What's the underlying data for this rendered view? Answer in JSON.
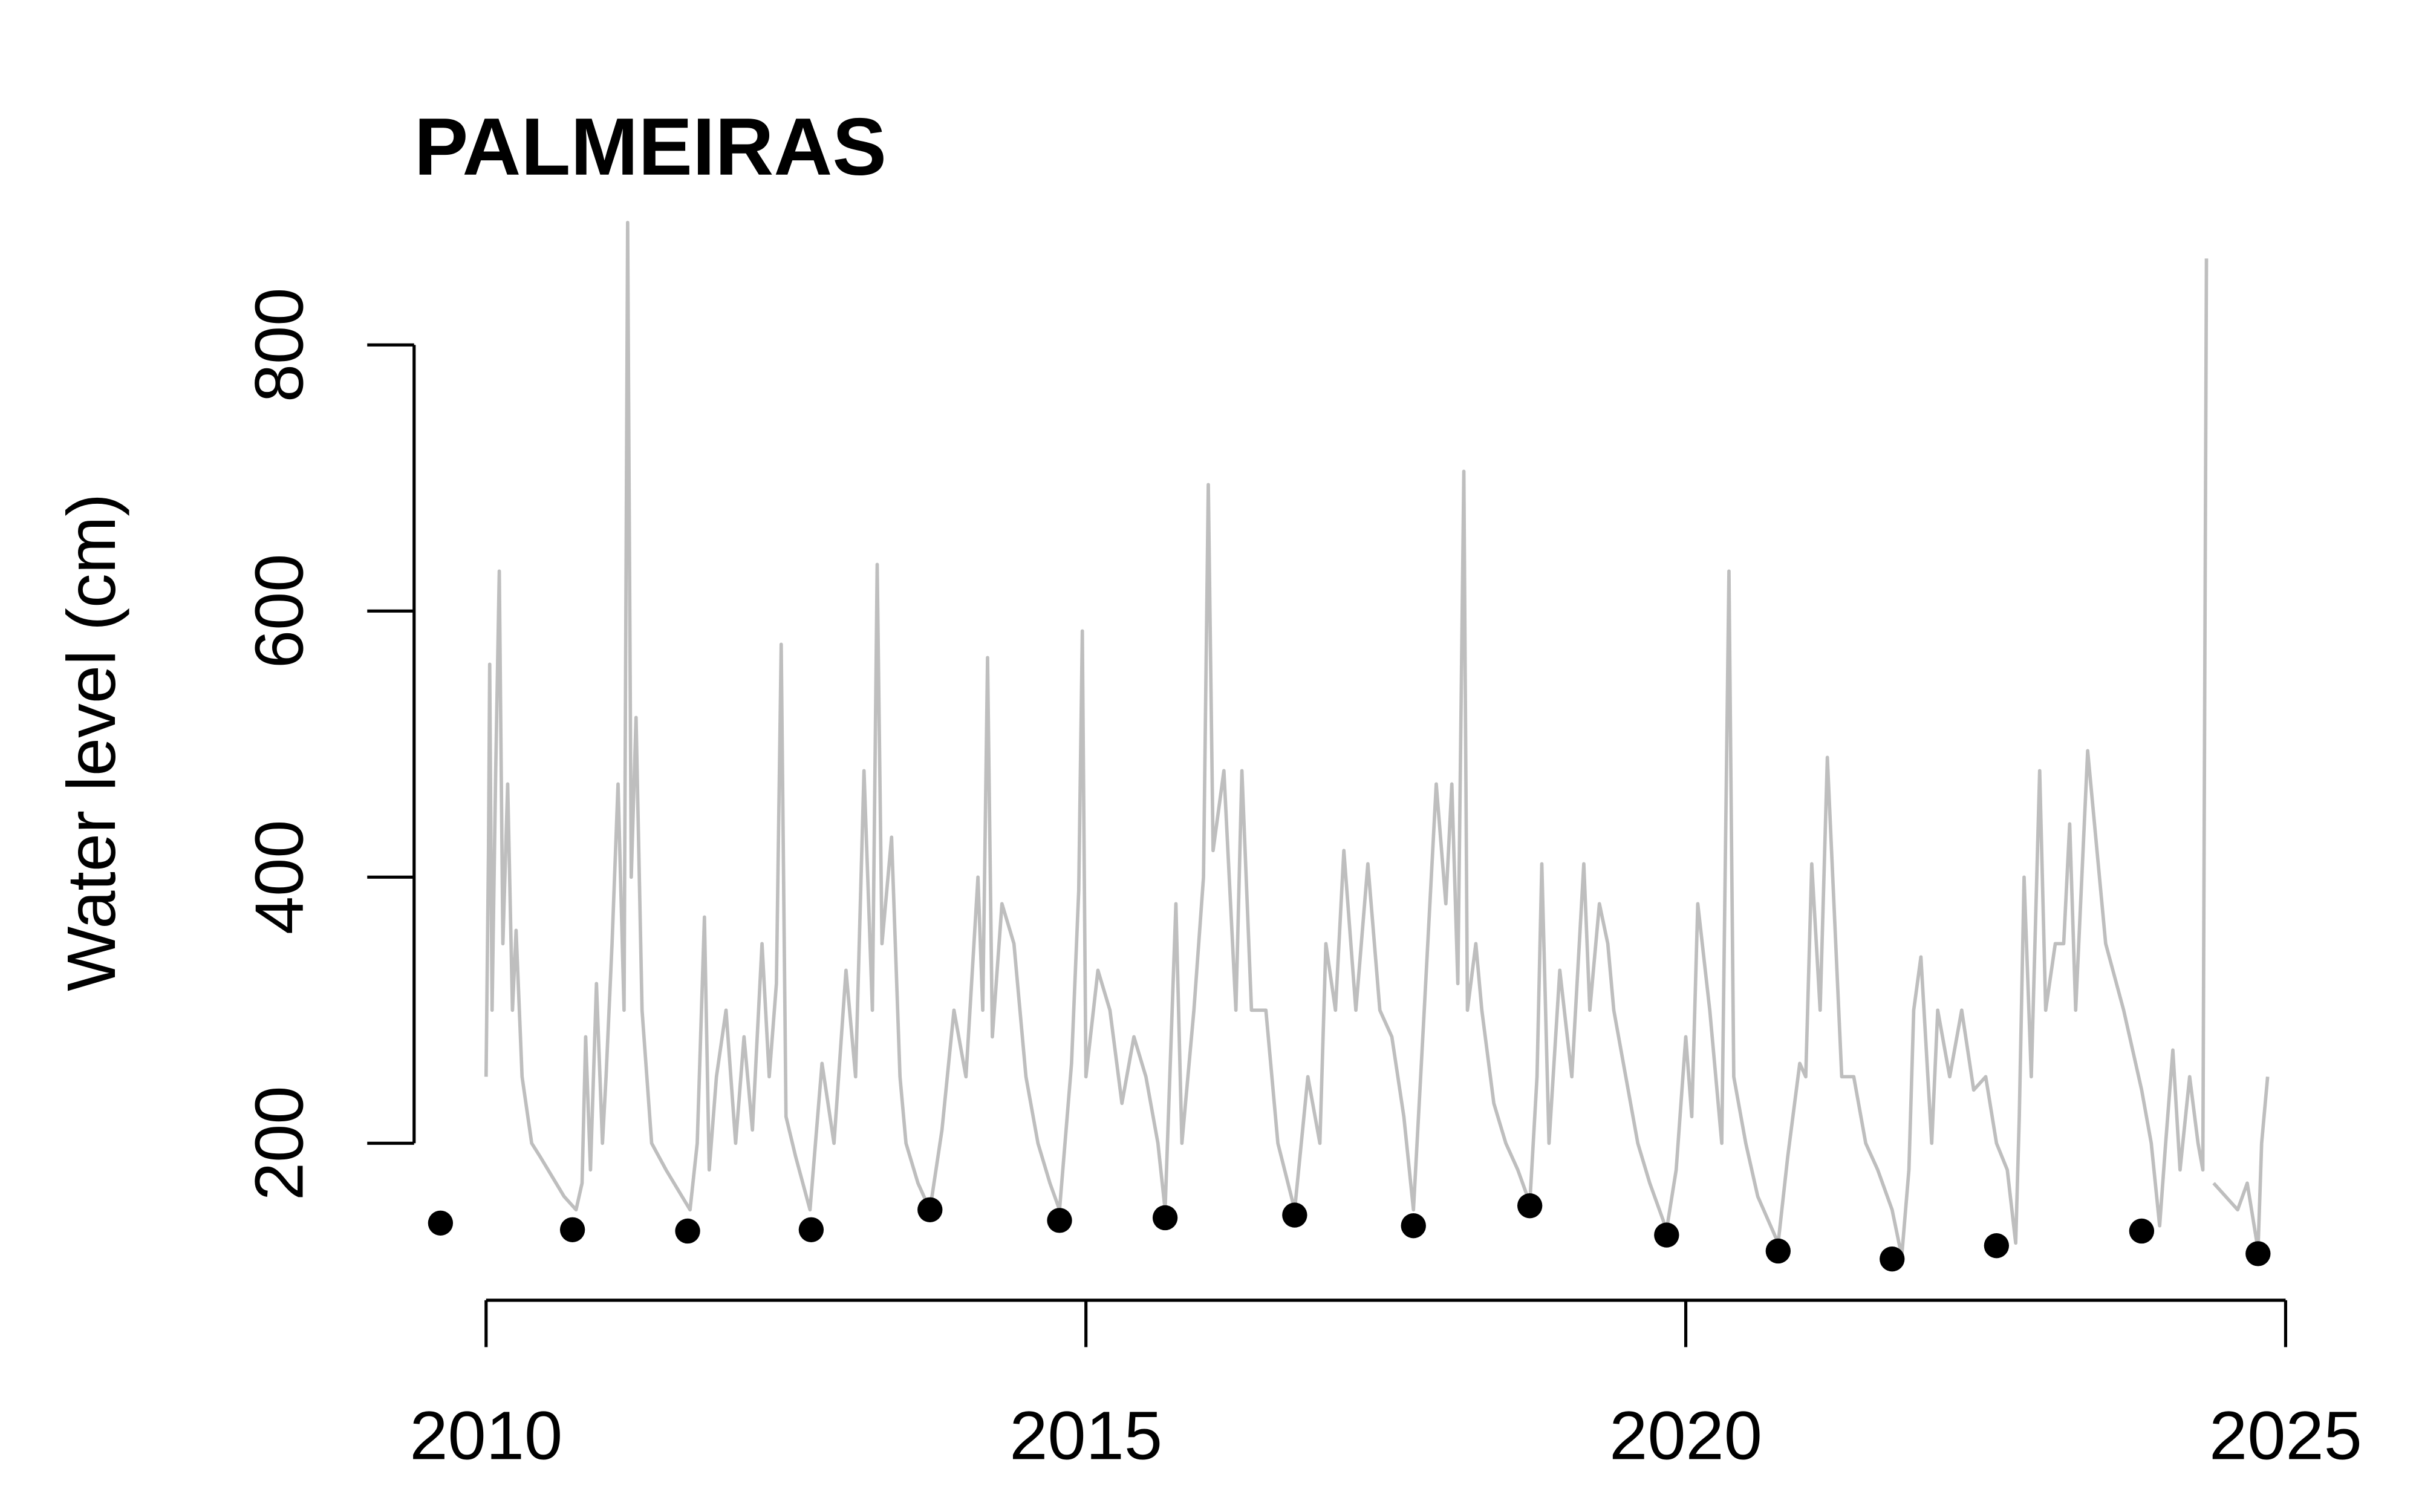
{
  "chart_data": {
    "type": "line",
    "title": "PALMEIRAS",
    "ylabel": "Water level (cm)",
    "xlim": [
      2009.4,
      2025.2
    ],
    "ylim": [
      82,
      923
    ],
    "xticks": [
      2010,
      2015,
      2020,
      2025
    ],
    "yticks": [
      200,
      400,
      600,
      800
    ],
    "series": [
      {
        "type": "line",
        "color": "#bebebe",
        "x": [
          2010.0,
          2010.02,
          2010.03,
          2010.05,
          2010.08,
          2010.11,
          2010.14,
          2010.18,
          2010.22,
          2010.25,
          2010.3,
          2010.38,
          2010.45,
          2010.55,
          2010.65,
          2010.75,
          2010.8,
          2010.83,
          2010.87,
          2010.92,
          2010.97,
          2011.0,
          2011.05,
          2011.1,
          2011.15,
          2011.18,
          2011.21,
          2011.25,
          2011.3,
          2011.38,
          2011.5,
          2011.6,
          2011.7,
          2011.76,
          2011.82,
          2011.86,
          2011.92,
          2012.0,
          2012.08,
          2012.15,
          2012.22,
          2012.3,
          2012.36,
          2012.42,
          2012.46,
          2012.5,
          2012.58,
          2012.7,
          2012.8,
          2012.9,
          2013.0,
          2013.08,
          2013.15,
          2013.22,
          2013.26,
          2013.3,
          2013.38,
          2013.45,
          2013.5,
          2013.6,
          2013.7,
          2013.8,
          2013.9,
          2014.0,
          2014.1,
          2014.14,
          2014.18,
          2014.22,
          2014.3,
          2014.4,
          2014.5,
          2014.6,
          2014.7,
          2014.78,
          2014.88,
          2014.94,
          2014.97,
          2015.0,
          2015.1,
          2015.2,
          2015.3,
          2015.4,
          2015.5,
          2015.6,
          2015.66,
          2015.75,
          2015.8,
          2015.9,
          2015.98,
          2016.02,
          2016.06,
          2016.15,
          2016.25,
          2016.3,
          2016.38,
          2016.5,
          2016.6,
          2016.74,
          2016.85,
          2016.95,
          2017.0,
          2017.08,
          2017.15,
          2017.25,
          2017.35,
          2017.45,
          2017.55,
          2017.65,
          2017.73,
          2017.82,
          2017.92,
          2018.0,
          2018.05,
          2018.1,
          2018.15,
          2018.18,
          2018.25,
          2018.3,
          2018.4,
          2018.5,
          2018.6,
          2018.7,
          2018.76,
          2018.8,
          2018.86,
          2018.95,
          2019.05,
          2019.15,
          2019.2,
          2019.28,
          2019.35,
          2019.4,
          2019.5,
          2019.6,
          2019.7,
          2019.84,
          2019.92,
          2020.0,
          2020.05,
          2020.1,
          2020.2,
          2020.3,
          2020.36,
          2020.4,
          2020.5,
          2020.6,
          2020.77,
          2020.85,
          2020.95,
          2021.0,
          2021.05,
          2021.12,
          2021.18,
          2021.3,
          2021.4,
          2021.5,
          2021.6,
          2021.72,
          2021.8,
          2021.86,
          2021.9,
          2021.96,
          2022.05,
          2022.1,
          2022.2,
          2022.3,
          2022.4,
          2022.5,
          2022.59,
          2022.68,
          2022.75,
          2022.78,
          2022.82,
          2022.88,
          2022.95,
          2023.0,
          2023.08,
          2023.15,
          2023.2,
          2023.25,
          2023.35,
          2023.5,
          2023.65,
          2023.8,
          2023.88,
          2023.95,
          2024.0,
          2024.06,
          2024.12,
          2024.2,
          2024.27,
          2024.31,
          2024.34,
          null,
          2024.4,
          2024.5,
          2024.6,
          2024.68,
          2024.77,
          2024.8,
          2024.85
        ],
        "values": [
          250,
          420,
          560,
          300,
          480,
          630,
          350,
          470,
          300,
          360,
          250,
          200,
          190,
          175,
          160,
          150,
          170,
          280,
          180,
          320,
          200,
          250,
          350,
          470,
          300,
          892,
          400,
          520,
          300,
          200,
          180,
          165,
          150,
          200,
          370,
          180,
          250,
          300,
          200,
          280,
          210,
          350,
          250,
          320,
          575,
          220,
          190,
          150,
          260,
          200,
          330,
          250,
          480,
          300,
          635,
          350,
          430,
          250,
          200,
          170,
          150,
          210,
          300,
          250,
          400,
          300,
          565,
          280,
          380,
          350,
          250,
          200,
          170,
          150,
          260,
          390,
          585,
          250,
          330,
          300,
          230,
          280,
          250,
          200,
          150,
          380,
          200,
          300,
          400,
          695,
          420,
          480,
          300,
          480,
          300,
          300,
          200,
          150,
          250,
          200,
          350,
          300,
          420,
          300,
          410,
          300,
          280,
          220,
          150,
          300,
          470,
          380,
          470,
          320,
          705,
          300,
          350,
          300,
          230,
          200,
          180,
          155,
          250,
          410,
          200,
          330,
          250,
          410,
          300,
          380,
          350,
          300,
          250,
          200,
          170,
          135,
          180,
          280,
          220,
          380,
          300,
          200,
          630,
          250,
          200,
          160,
          125,
          190,
          260,
          250,
          410,
          300,
          490,
          250,
          250,
          200,
          180,
          150,
          115,
          180,
          300,
          340,
          200,
          300,
          250,
          300,
          240,
          250,
          200,
          180,
          125,
          220,
          400,
          250,
          480,
          300,
          350,
          350,
          440,
          300,
          495,
          350,
          300,
          240,
          200,
          138,
          200,
          270,
          180,
          250,
          200,
          180,
          865,
          200,
          170,
          160,
          150,
          170,
          120,
          200,
          250
        ]
      },
      {
        "type": "scatter",
        "color": "#000000",
        "x": [
          2009.62,
          2010.72,
          2011.68,
          2012.71,
          2013.7,
          2014.78,
          2015.66,
          2016.74,
          2017.73,
          2018.7,
          2019.84,
          2020.77,
          2021.72,
          2022.59,
          2023.8,
          2024.77
        ],
        "values": [
          140,
          135,
          134,
          135,
          150,
          142,
          144,
          146,
          138,
          153,
          131,
          119,
          113,
          123,
          134,
          117
        ]
      }
    ]
  }
}
